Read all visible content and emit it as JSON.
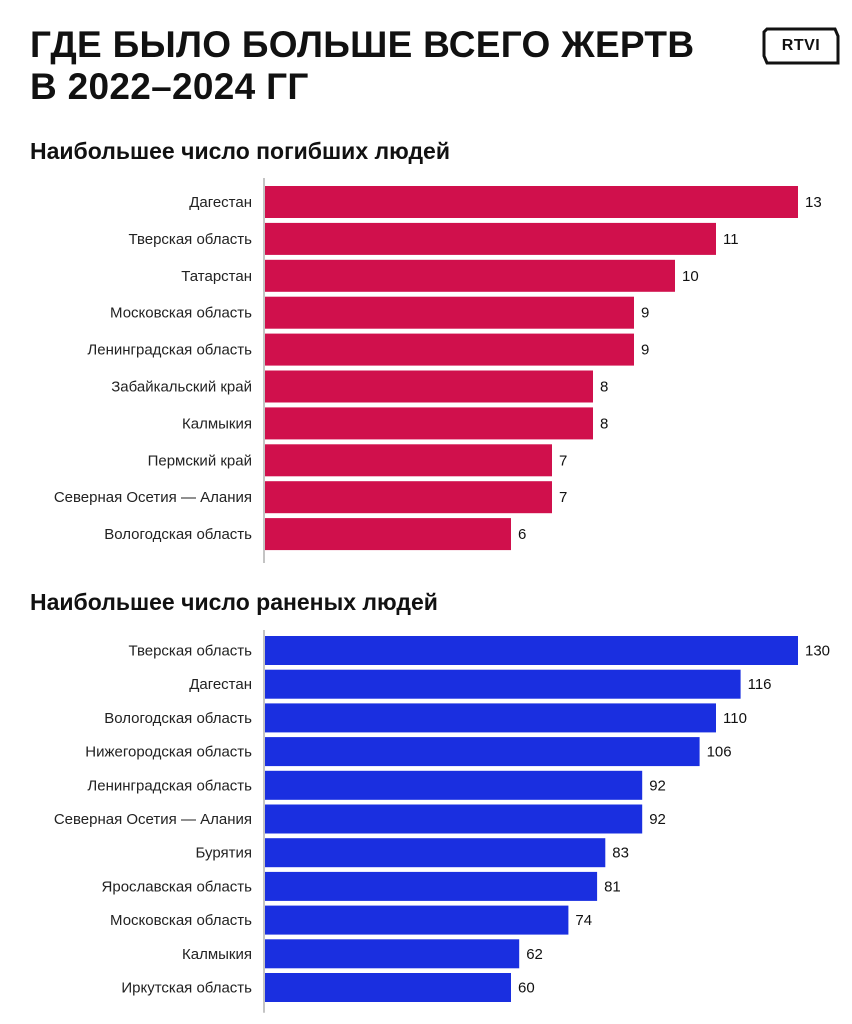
{
  "header": {
    "title_line1": "ГДЕ БЫЛО БОЛЬШЕ ВСЕГО ЖЕРТВ",
    "title_line2": "В 2022–2024 ГГ",
    "logo_text": "RTVI"
  },
  "colors": {
    "deaths_bar": "#d0104c",
    "injured_bar": "#1a2fe0",
    "axis": "#8a8a8a"
  },
  "chart_data": [
    {
      "type": "bar",
      "orientation": "horizontal",
      "title": "Наибольшее число погибших людей",
      "categories": [
        "Дагестан",
        "Тверская область",
        "Татарстан",
        "Московская область",
        "Ленинградская область",
        "Забайкальский край",
        "Калмыкия",
        "Пермский край",
        "Северная Осетия — Алания",
        "Вологодская область"
      ],
      "values": [
        13,
        11,
        10,
        9,
        9,
        8,
        8,
        7,
        7,
        6
      ],
      "color": "#d0104c",
      "xlim": [
        0,
        13
      ]
    },
    {
      "type": "bar",
      "orientation": "horizontal",
      "title": "Наибольшее число раненых людей",
      "categories": [
        "Тверская область",
        "Дагестан",
        "Вологодская область",
        "Нижегородская область",
        "Ленинградская область",
        "Северная Осетия — Алания",
        "Бурятия",
        "Ярославская область",
        "Московская область",
        "Калмыкия",
        "Иркутская область"
      ],
      "values": [
        130,
        116,
        110,
        106,
        92,
        92,
        83,
        81,
        74,
        62,
        60
      ],
      "color": "#1a2fe0",
      "xlim": [
        0,
        130
      ]
    }
  ]
}
